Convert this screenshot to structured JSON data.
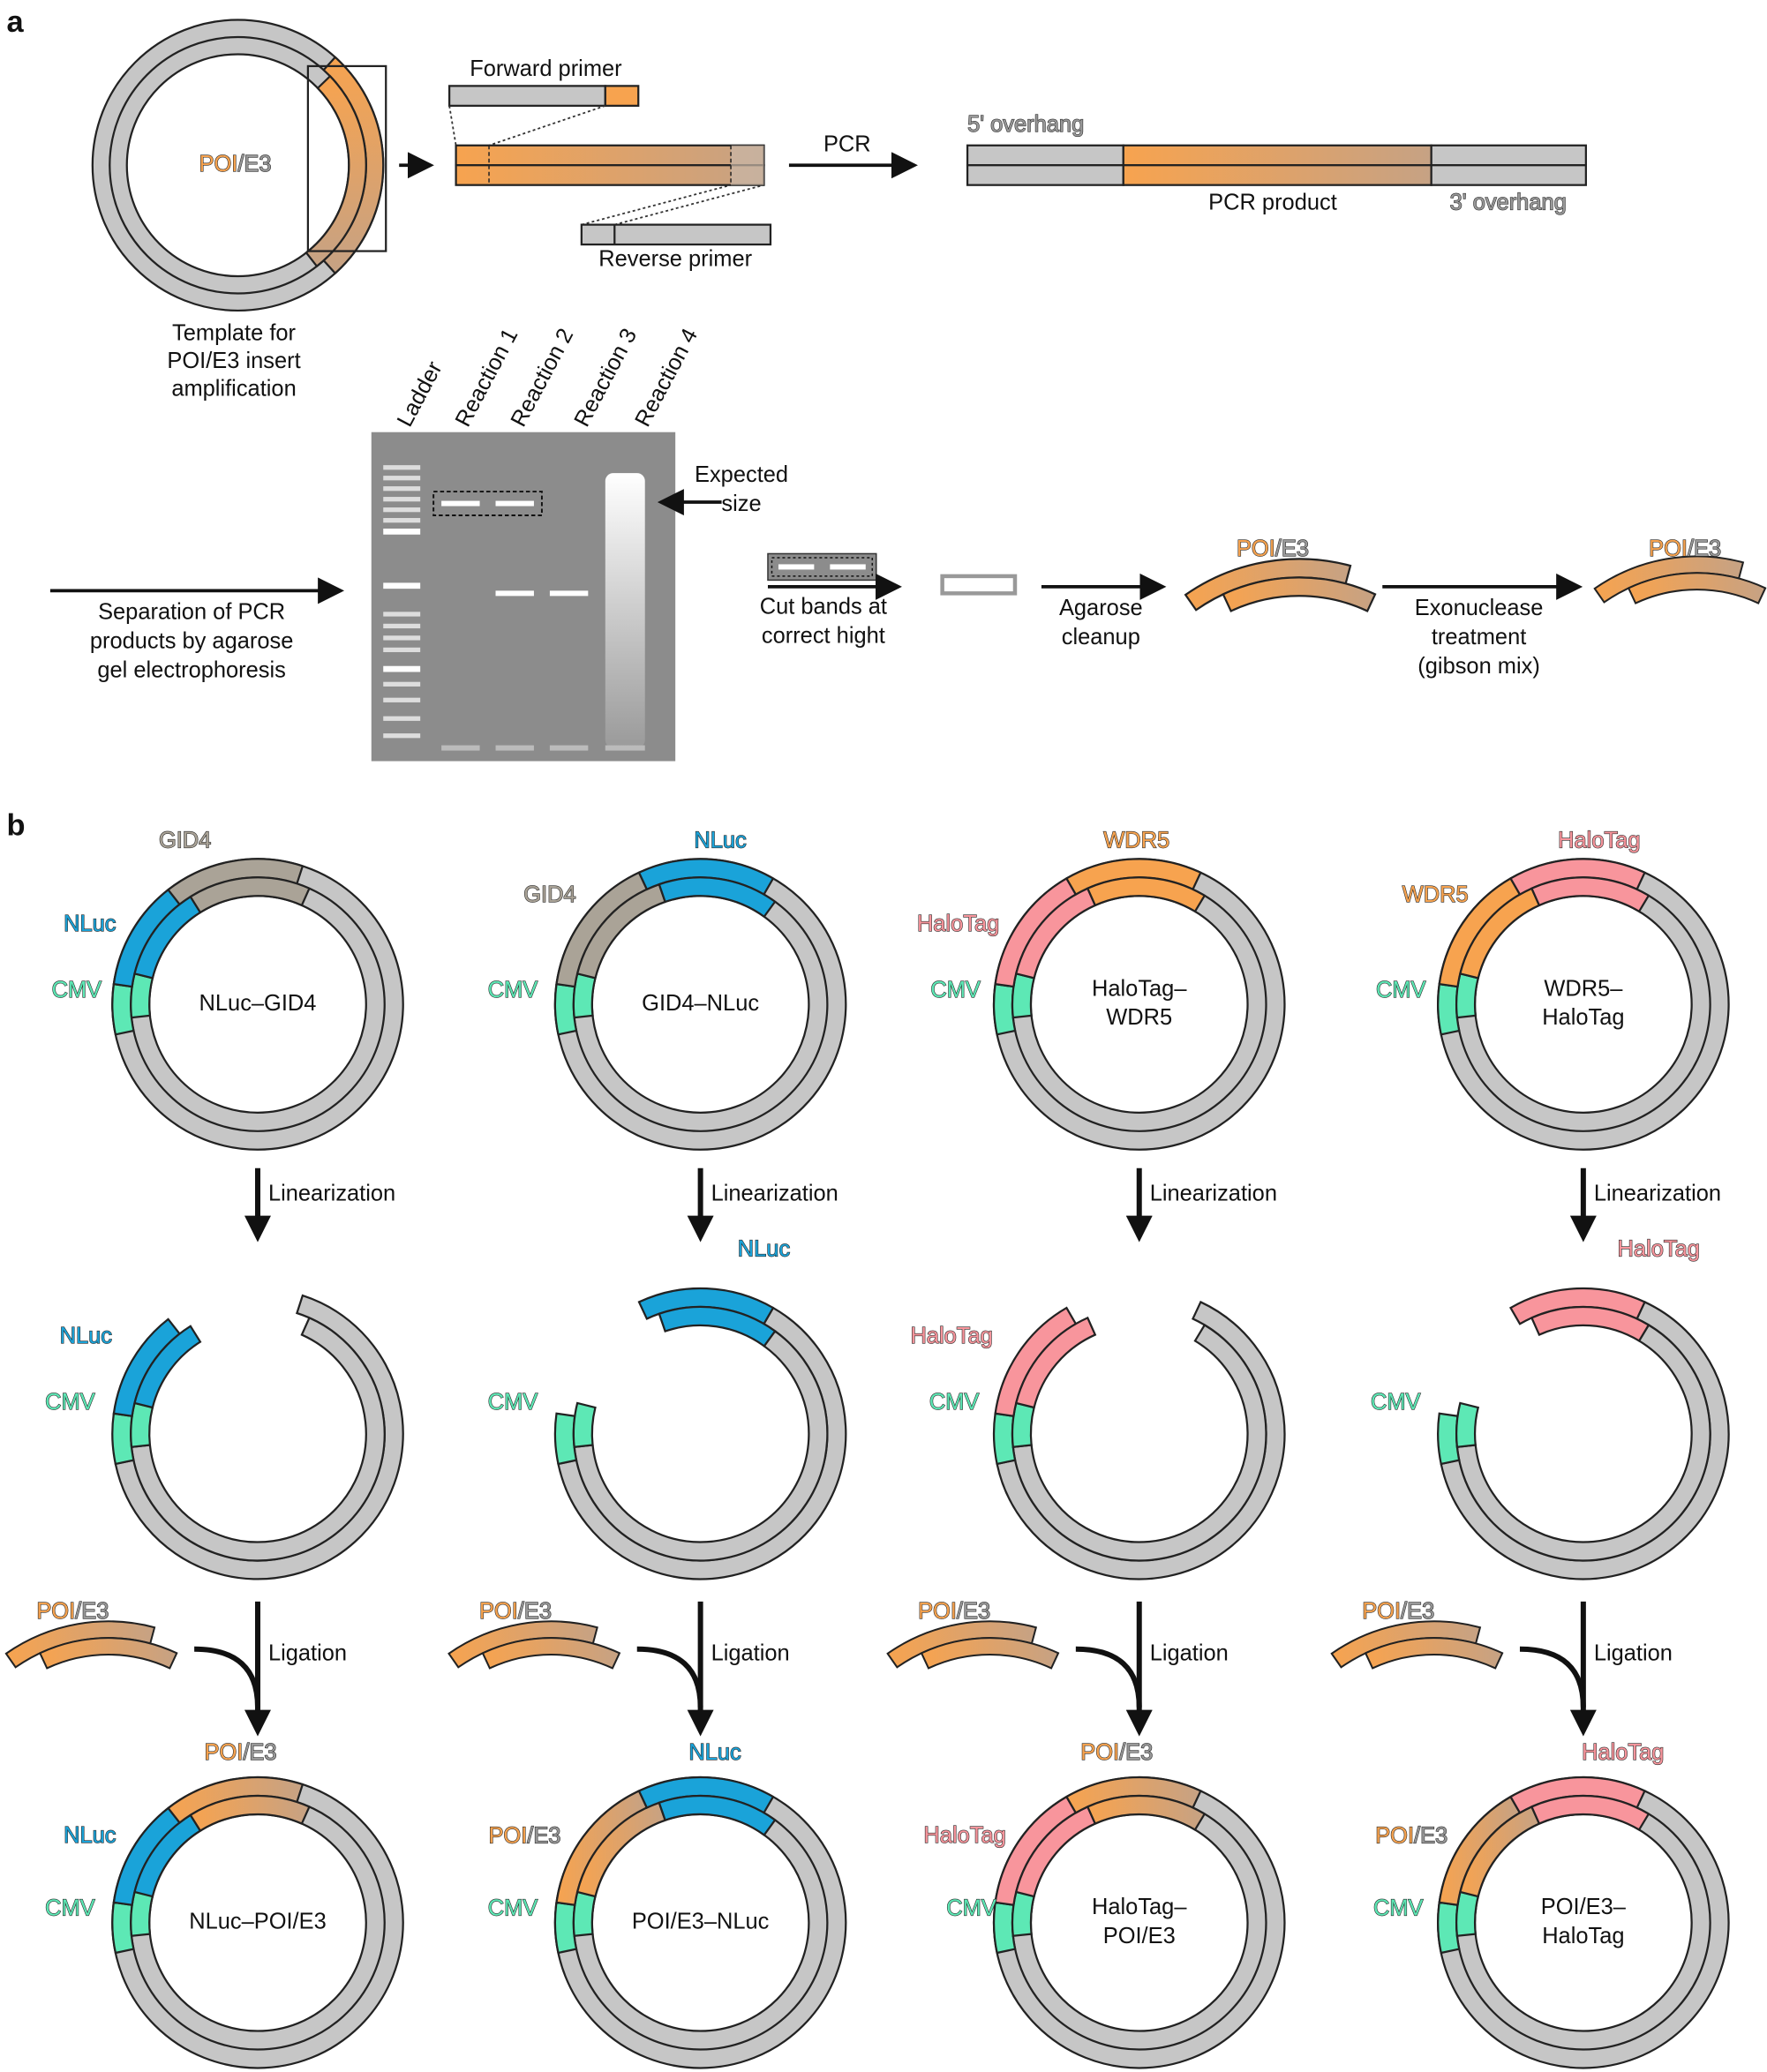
{
  "panel_a": {
    "label": "a",
    "template": {
      "insert": {
        "poi": "POI",
        "e3": "/E3"
      },
      "caption": [
        "Template for",
        "POI/E3 insert",
        "amplification"
      ]
    },
    "forward_primer": "Forward primer",
    "reverse_primer": "Reverse primer",
    "pcr": "PCR",
    "product": {
      "overhang_5": "5' overhang",
      "name": "PCR product",
      "overhang_3": "3' overhang"
    },
    "gel": {
      "lanes": [
        "Ladder",
        "Reaction 1",
        "Reaction 2",
        "Reaction 3",
        "Reaction 4"
      ],
      "expected": [
        "Expected",
        "size"
      ],
      "caption": [
        "Separation of PCR",
        "products by agarose",
        "gel electrophoresis"
      ]
    },
    "cut": [
      "Cut bands at",
      "correct hight"
    ],
    "cleanup": {
      "caption": [
        "Agarose",
        "cleanup"
      ],
      "insert": {
        "poi": "POI",
        "e3": "/E3"
      }
    },
    "exonuclease": {
      "caption": [
        "Exonuclease",
        "treatment",
        "(gibson mix)"
      ],
      "insert": {
        "poi": "POI",
        "e3": "/E3"
      }
    }
  },
  "panel_b": {
    "label": "b",
    "constructs": [
      {
        "plasmid": {
          "name": [
            "NLuc–GID4"
          ],
          "labels": [
            "GID4",
            "NLuc",
            "CMV"
          ]
        },
        "linearization": "Linearization",
        "linearized": {
          "labels": [
            "NLuc",
            "CMV"
          ]
        },
        "insert": {
          "poi": "POI",
          "e3": "/E3"
        },
        "ligation": "Ligation",
        "product": {
          "name": [
            "NLuc–POI/E3"
          ],
          "labels": [
            {
              "poi": "POI",
              "e3": "/E3"
            },
            "NLuc",
            "CMV"
          ]
        }
      },
      {
        "plasmid": {
          "name": [
            "GID4–NLuc"
          ],
          "labels": [
            "NLuc",
            "GID4",
            "CMV"
          ]
        },
        "linearization": "Linearization",
        "linearized": {
          "labels": [
            "NLuc",
            "CMV"
          ]
        },
        "insert": {
          "poi": "POI",
          "e3": "/E3"
        },
        "ligation": "Ligation",
        "product": {
          "name": [
            "POI/E3–NLuc"
          ],
          "labels": [
            "NLuc",
            {
              "poi": "POI",
              "e3": "/E3"
            },
            "CMV"
          ]
        }
      },
      {
        "plasmid": {
          "name": [
            "HaloTag–",
            "WDR5"
          ],
          "labels": [
            "WDR5",
            "HaloTag",
            "CMV"
          ]
        },
        "linearization": "Linearization",
        "linearized": {
          "labels": [
            "HaloTag",
            "CMV"
          ]
        },
        "insert": {
          "poi": "POI",
          "e3": "/E3"
        },
        "ligation": "Ligation",
        "product": {
          "name": [
            "HaloTag–",
            "POI/E3"
          ],
          "labels": [
            {
              "poi": "POI",
              "e3": "/E3"
            },
            "HaloTag",
            "CMV"
          ]
        }
      },
      {
        "plasmid": {
          "name": [
            "WDR5–",
            "HaloTag"
          ],
          "labels": [
            "HaloTag",
            "WDR5",
            "CMV"
          ]
        },
        "linearization": "Linearization",
        "linearized": {
          "labels": [
            "HaloTag",
            "CMV"
          ]
        },
        "insert": {
          "poi": "POI",
          "e3": "/E3"
        },
        "ligation": "Ligation",
        "product": {
          "name": [
            "POI/E3–",
            "HaloTag"
          ],
          "labels": [
            "HaloTag",
            {
              "poi": "POI",
              "e3": "/E3"
            },
            "CMV"
          ]
        }
      }
    ]
  }
}
